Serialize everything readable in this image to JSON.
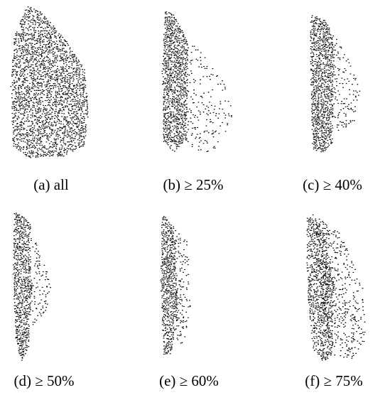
{
  "panels": [
    {
      "caption": "(a) all"
    },
    {
      "caption": "(b) ≥ 25%"
    },
    {
      "caption": "(c) ≥ 40%"
    },
    {
      "caption": "(d) ≥ 50%"
    },
    {
      "caption": "(e) ≥ 60%"
    },
    {
      "caption": "(f) ≥ 75%"
    }
  ]
}
